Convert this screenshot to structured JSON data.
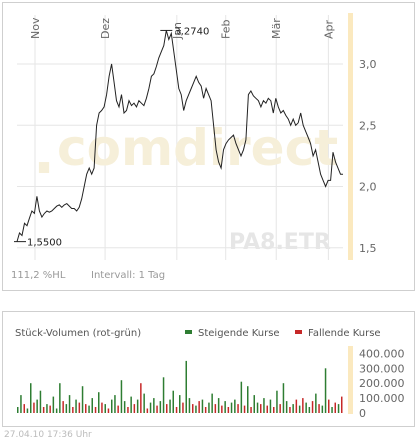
{
  "chart_data": [
    {
      "type": "line",
      "months": [
        "Nov",
        "Dez",
        "Jan",
        "Feb",
        "Mär",
        "Apr"
      ],
      "month_pos": [
        0.0,
        0.215,
        0.435,
        0.585,
        0.74,
        0.9
      ],
      "y_ticks": [
        "3,0",
        "2,5",
        "2,0",
        "1,5"
      ],
      "y_tick_values": [
        3.0,
        2.5,
        2.0,
        1.5
      ],
      "ylim": [
        1.4,
        3.4
      ],
      "series": [
        {
          "values": [
            1.55,
            1.62,
            1.6,
            1.7,
            1.68,
            1.74,
            1.8,
            1.78,
            1.92,
            1.8,
            1.75,
            1.78,
            1.8,
            1.79,
            1.8,
            1.82,
            1.84,
            1.85,
            1.83,
            1.85,
            1.86,
            1.84,
            1.82,
            1.82,
            1.8,
            1.83,
            1.9,
            2.0,
            2.1,
            2.15,
            2.1,
            2.15,
            2.5,
            2.6,
            2.62,
            2.65,
            2.75,
            2.9,
            3.0,
            2.85,
            2.7,
            2.65,
            2.75,
            2.6,
            2.62,
            2.7,
            2.66,
            2.68,
            2.65,
            2.7,
            2.68,
            2.66,
            2.72,
            2.8,
            2.9,
            2.92,
            2.98,
            3.05,
            3.1,
            3.15,
            3.274,
            3.2,
            3.25,
            3.1,
            2.95,
            2.8,
            2.75,
            2.62,
            2.7,
            2.75,
            2.8,
            2.85,
            2.9,
            2.85,
            2.82,
            2.72,
            2.8,
            2.75,
            2.7,
            2.5,
            2.3,
            2.2,
            2.15,
            2.3,
            2.35,
            2.38,
            2.4,
            2.42,
            2.35,
            2.3,
            2.25,
            2.3,
            2.38,
            2.75,
            2.78,
            2.74,
            2.72,
            2.7,
            2.65,
            2.7,
            2.68,
            2.72,
            2.7,
            2.6,
            2.72,
            2.65,
            2.6,
            2.62,
            2.58,
            2.55,
            2.5,
            2.55,
            2.5,
            2.52,
            2.6,
            2.5,
            2.45,
            2.4,
            2.35,
            2.25,
            2.3,
            2.2,
            2.1,
            2.05,
            2.0,
            2.05,
            2.05,
            2.28,
            2.2,
            2.15,
            2.1,
            2.1
          ]
        }
      ],
      "annotations": {
        "max_label": "3,2740",
        "min_label": "1,5500"
      },
      "watermark": "comdirect",
      "ticker": "PA8.ETR",
      "info_left": "111,2 %HL",
      "info_right": "Intervall: 1 Tag"
    },
    {
      "type": "bar",
      "title": "Stück-Volumen (rot-grün)",
      "legend": [
        {
          "label": "Steigende Kurse",
          "color": "#2e7d32"
        },
        {
          "label": "Fallende Kurse",
          "color": "#c62828"
        }
      ],
      "y_ticks": [
        "400.000",
        "300.000",
        "200.000",
        "100.000",
        "0"
      ],
      "y_tick_values": [
        400000,
        300000,
        200000,
        100000,
        0
      ],
      "ylim": [
        0,
        450000
      ],
      "values": [
        40000,
        120000,
        60000,
        30000,
        200000,
        70000,
        90000,
        150000,
        40000,
        60000,
        50000,
        110000,
        30000,
        200000,
        80000,
        60000,
        120000,
        40000,
        90000,
        70000,
        180000,
        60000,
        50000,
        100000,
        40000,
        140000,
        70000,
        60000,
        30000,
        90000,
        120000,
        50000,
        220000,
        80000,
        40000,
        110000,
        60000,
        90000,
        200000,
        130000,
        30000,
        70000,
        100000,
        50000,
        80000,
        240000,
        60000,
        90000,
        150000,
        40000,
        120000,
        70000,
        350000,
        100000,
        60000,
        50000,
        80000,
        90000,
        40000,
        70000,
        130000,
        60000,
        100000,
        50000,
        80000,
        40000,
        70000,
        90000,
        60000,
        210000,
        50000,
        180000,
        40000,
        120000,
        70000,
        60000,
        100000,
        50000,
        90000,
        40000,
        150000,
        60000,
        200000,
        80000,
        40000,
        60000,
        90000,
        50000,
        100000,
        70000,
        40000,
        80000,
        130000,
        60000,
        50000,
        300000,
        90000,
        40000,
        70000,
        60000,
        110000
      ],
      "up": [
        true,
        true,
        false,
        true,
        true,
        false,
        true,
        true,
        false,
        true,
        false,
        true,
        true,
        true,
        false,
        true,
        true,
        false,
        true,
        false,
        true,
        false,
        true,
        true,
        false,
        true,
        false,
        true,
        false,
        true,
        true,
        false,
        true,
        true,
        false,
        true,
        false,
        true,
        false,
        true,
        false,
        true,
        true,
        false,
        true,
        true,
        false,
        true,
        true,
        false,
        true,
        false,
        true,
        true,
        false,
        true,
        false,
        true,
        false,
        true,
        true,
        false,
        true,
        false,
        true,
        false,
        true,
        true,
        false,
        true,
        false,
        true,
        false,
        true,
        true,
        false,
        true,
        false,
        true,
        false,
        true,
        false,
        true,
        true,
        false,
        true,
        false,
        true,
        false,
        true,
        true,
        false,
        true,
        false,
        true,
        true,
        false,
        true,
        false,
        true,
        false
      ]
    }
  ],
  "footer": {
    "timestamp": "27.04.10    17:36 Uhr"
  }
}
